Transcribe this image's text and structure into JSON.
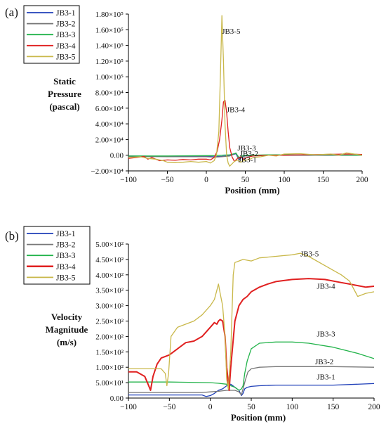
{
  "chart_data": [
    {
      "type": "line",
      "panel_label": "(a)",
      "ylabel_lines": [
        "Static",
        "Pressure",
        "(pascal)"
      ],
      "xlabel": "Position (mm)",
      "xlim": [
        -100,
        200
      ],
      "ylim": [
        -20000,
        180000
      ],
      "x_ticks": [
        "−100",
        "−50",
        "0",
        "50",
        "100",
        "150",
        "200"
      ],
      "y_ticks": [
        "−2.00×10⁴",
        "0.00",
        "2.00×10⁴",
        "4.00×10⁴",
        "6.00×10⁴",
        "8.00×10⁴",
        "1.00×10⁵",
        "1.20×10⁵",
        "1.40×10⁵",
        "1.60×10⁵",
        "1.80×10⁵"
      ],
      "legend": [
        "JB3-1",
        "JB3-2",
        "JB3-3",
        "JB3-4",
        "JB3-5"
      ],
      "legend_position": "top-left",
      "annotations": [
        {
          "text": "JB3-5",
          "x": 20,
          "y": 155000
        },
        {
          "text": "JB3-4",
          "x": 26,
          "y": 55000
        },
        {
          "text": "JB3-3",
          "x": 40,
          "y": 6000
        },
        {
          "text": "JB3-2",
          "x": 43,
          "y": -1000
        },
        {
          "text": "JB3-1",
          "x": 41,
          "y": -9000
        }
      ],
      "series": [
        {
          "name": "JB3-1",
          "color": "#1f3fb8",
          "x": [
            -100,
            -50,
            0,
            10,
            20,
            30,
            38,
            42,
            46,
            50,
            60,
            80,
            100,
            150,
            200
          ],
          "y": [
            -1000,
            -1500,
            -1500,
            -2000,
            -1500,
            -500,
            2000,
            -6000,
            -2000,
            -1000,
            -500,
            0,
            0,
            0,
            0
          ]
        },
        {
          "name": "JB3-2",
          "color": "#777777",
          "x": [
            -100,
            -50,
            0,
            10,
            20,
            30,
            38,
            42,
            46,
            50,
            60,
            80,
            100,
            150,
            200
          ],
          "y": [
            -1500,
            -2000,
            -2000,
            -2500,
            -2000,
            -1000,
            3000,
            -5000,
            -1500,
            -1000,
            -500,
            0,
            0,
            0,
            0
          ]
        },
        {
          "name": "JB3-3",
          "color": "#22b34a",
          "x": [
            -100,
            -50,
            0,
            10,
            20,
            30,
            38,
            42,
            46,
            50,
            60,
            80,
            100,
            150,
            200
          ],
          "y": [
            -1000,
            -1000,
            -500,
            -500,
            0,
            500,
            2500,
            -3000,
            -1000,
            0,
            0,
            500,
            500,
            500,
            0
          ]
        },
        {
          "name": "JB3-4",
          "color": "#e02020",
          "x": [
            -100,
            -90,
            -80,
            -75,
            -70,
            -60,
            -50,
            -40,
            -30,
            -20,
            -10,
            0,
            5,
            10,
            14,
            17,
            20,
            22,
            24,
            26,
            28,
            30,
            33,
            36,
            40,
            44,
            48,
            52,
            56,
            60,
            70,
            80,
            100,
            120,
            150,
            180,
            200
          ],
          "y": [
            -4000,
            -3000,
            -1500,
            -5000,
            -3000,
            -7000,
            -6000,
            -6500,
            -5500,
            -6000,
            -5000,
            -5000,
            -6000,
            -3000,
            5000,
            20000,
            45000,
            68000,
            70000,
            55000,
            30000,
            10000,
            -2000,
            -8000,
            -4000,
            -2000,
            -5000,
            -3000,
            -2000,
            -1000,
            -500,
            0,
            0,
            500,
            1000,
            1500,
            1000
          ]
        },
        {
          "name": "JB3-5",
          "color": "#c9b84a",
          "x": [
            -100,
            -85,
            -75,
            -65,
            -55,
            -50,
            -40,
            -30,
            -20,
            -10,
            0,
            5,
            10,
            13,
            16,
            18,
            20,
            22,
            24,
            26,
            28,
            30,
            32,
            36,
            40,
            44,
            48,
            52,
            56,
            60,
            70,
            80,
            90,
            100,
            120,
            140,
            160,
            170,
            180,
            190,
            200
          ],
          "y": [
            -3000,
            -2000,
            -4000,
            -5000,
            -7000,
            -9000,
            -9500,
            -9000,
            -8000,
            -9000,
            -8000,
            -10000,
            -7000,
            0,
            30000,
            100000,
            178000,
            120000,
            40000,
            0,
            -10000,
            -14000,
            -12000,
            -8000,
            -6000,
            -9000,
            -7000,
            -6000,
            -5000,
            -3000,
            -2000,
            0,
            -1000,
            1500,
            2000,
            500,
            1500,
            0,
            3000,
            1500,
            0
          ]
        }
      ]
    },
    {
      "type": "line",
      "panel_label": "(b)",
      "ylabel_lines": [
        "Velocity",
        "Magnitude",
        "(m/s)"
      ],
      "xlabel": "Position (mm)",
      "xlim": [
        -100,
        200
      ],
      "ylim": [
        0,
        500
      ],
      "x_ticks": [
        "−100",
        "−50",
        "0",
        "50",
        "100",
        "150",
        "200"
      ],
      "y_ticks": [
        "0.00",
        "5.00×10¹",
        "1.00×10²",
        "1.50×10²",
        "2.00×10²",
        "2.50×10²",
        "3.00×10²",
        "3.50×10²",
        "4.00×10²",
        "4.50×10²",
        "5.00×10²"
      ],
      "legend": [
        "JB3-1",
        "JB3-2",
        "JB3-3",
        "JB3-4",
        "JB3-5"
      ],
      "legend_position": "top-left",
      "annotations": [
        {
          "text": "JB3-5",
          "x": 110,
          "y": 460
        },
        {
          "text": "JB3-4",
          "x": 130,
          "y": 355
        },
        {
          "text": "JB3-3",
          "x": 130,
          "y": 200
        },
        {
          "text": "JB3-2",
          "x": 128,
          "y": 110
        },
        {
          "text": "JB3-1",
          "x": 130,
          "y": 60
        }
      ],
      "series": [
        {
          "name": "JB3-1",
          "color": "#1f3fb8",
          "x": [
            -100,
            -50,
            -10,
            -5,
            0,
            5,
            10,
            15,
            20,
            25,
            30,
            35,
            38,
            40,
            42,
            45,
            50,
            60,
            80,
            100,
            150,
            200
          ],
          "y": [
            10,
            10,
            10,
            5,
            8,
            15,
            25,
            30,
            40,
            45,
            35,
            25,
            8,
            15,
            30,
            35,
            38,
            40,
            42,
            42,
            42,
            47
          ]
        },
        {
          "name": "JB3-2",
          "color": "#777777",
          "x": [
            -100,
            -50,
            -10,
            0,
            10,
            20,
            30,
            35,
            38,
            40,
            43,
            46,
            50,
            60,
            80,
            100,
            150,
            200
          ],
          "y": [
            18,
            18,
            18,
            20,
            22,
            25,
            25,
            20,
            10,
            30,
            60,
            85,
            95,
            100,
            102,
            102,
            102,
            100
          ]
        },
        {
          "name": "JB3-3",
          "color": "#22b34a",
          "x": [
            -100,
            -50,
            0,
            10,
            20,
            25,
            30,
            35,
            38,
            40,
            42,
            45,
            50,
            60,
            80,
            100,
            120,
            150,
            180,
            200
          ],
          "y": [
            52,
            52,
            50,
            48,
            45,
            40,
            35,
            25,
            30,
            40,
            80,
            120,
            160,
            178,
            182,
            182,
            178,
            165,
            145,
            128
          ]
        },
        {
          "name": "JB3-4",
          "color": "#e02020",
          "x": [
            -100,
            -90,
            -80,
            -76,
            -73,
            -70,
            -65,
            -60,
            -50,
            -40,
            -30,
            -20,
            -10,
            0,
            5,
            8,
            10,
            12,
            15,
            18,
            20,
            23,
            25,
            30,
            35,
            40,
            45,
            50,
            60,
            70,
            80,
            100,
            120,
            140,
            160,
            170,
            180,
            190,
            200
          ],
          "y": [
            85,
            85,
            70,
            45,
            25,
            70,
            110,
            130,
            140,
            160,
            180,
            185,
            200,
            230,
            245,
            240,
            250,
            255,
            250,
            200,
            100,
            25,
            100,
            250,
            300,
            320,
            330,
            345,
            360,
            370,
            378,
            385,
            388,
            385,
            375,
            370,
            365,
            360,
            363
          ]
        },
        {
          "name": "JB3-5",
          "color": "#c9b84a",
          "x": [
            -100,
            -70,
            -60,
            -55,
            -53,
            -51,
            -48,
            -40,
            -30,
            -20,
            -10,
            0,
            5,
            8,
            10,
            12,
            15,
            18,
            20,
            22,
            25,
            28,
            30,
            35,
            40,
            50,
            60,
            80,
            100,
            110,
            120,
            140,
            160,
            170,
            180,
            190,
            200
          ],
          "y": [
            95,
            95,
            95,
            80,
            40,
            80,
            200,
            230,
            240,
            250,
            270,
            300,
            320,
            350,
            370,
            340,
            300,
            200,
            60,
            30,
            150,
            400,
            440,
            445,
            450,
            445,
            455,
            460,
            465,
            470,
            460,
            430,
            400,
            380,
            330,
            340,
            345
          ]
        }
      ]
    }
  ]
}
